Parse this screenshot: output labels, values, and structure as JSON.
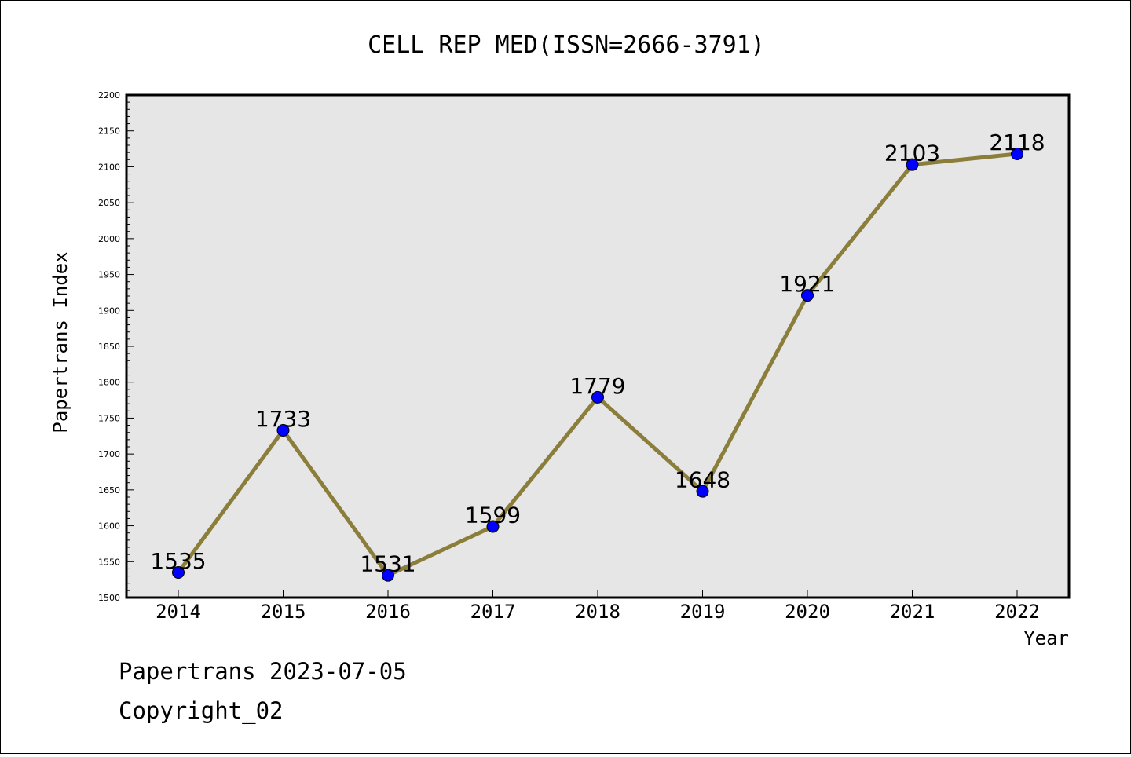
{
  "chart_data": {
    "type": "line",
    "title": "CELL REP MED(ISSN=2666-3791)",
    "xlabel": "Year",
    "ylabel": "Papertrans Index",
    "categories": [
      "2014",
      "2015",
      "2016",
      "2017",
      "2018",
      "2019",
      "2020",
      "2021",
      "2022"
    ],
    "series": [
      {
        "values": [
          1535,
          1733,
          1531,
          1599,
          1779,
          1648,
          1921,
          2103,
          2118
        ]
      }
    ],
    "ylim": [
      1500,
      2200
    ],
    "y_ticks": [
      1500,
      1550,
      1600,
      1650,
      1700,
      1750,
      1800,
      1850,
      1900,
      1950,
      2000,
      2050,
      2100,
      2150,
      2200
    ],
    "line_color": "#8b7d3a",
    "marker_color": "#0000ff",
    "plot_background": "#e6e6e6",
    "grid": false,
    "legend": "none"
  },
  "footer": {
    "line1": "Papertrans 2023-07-05",
    "line2": "Copyright_02"
  }
}
